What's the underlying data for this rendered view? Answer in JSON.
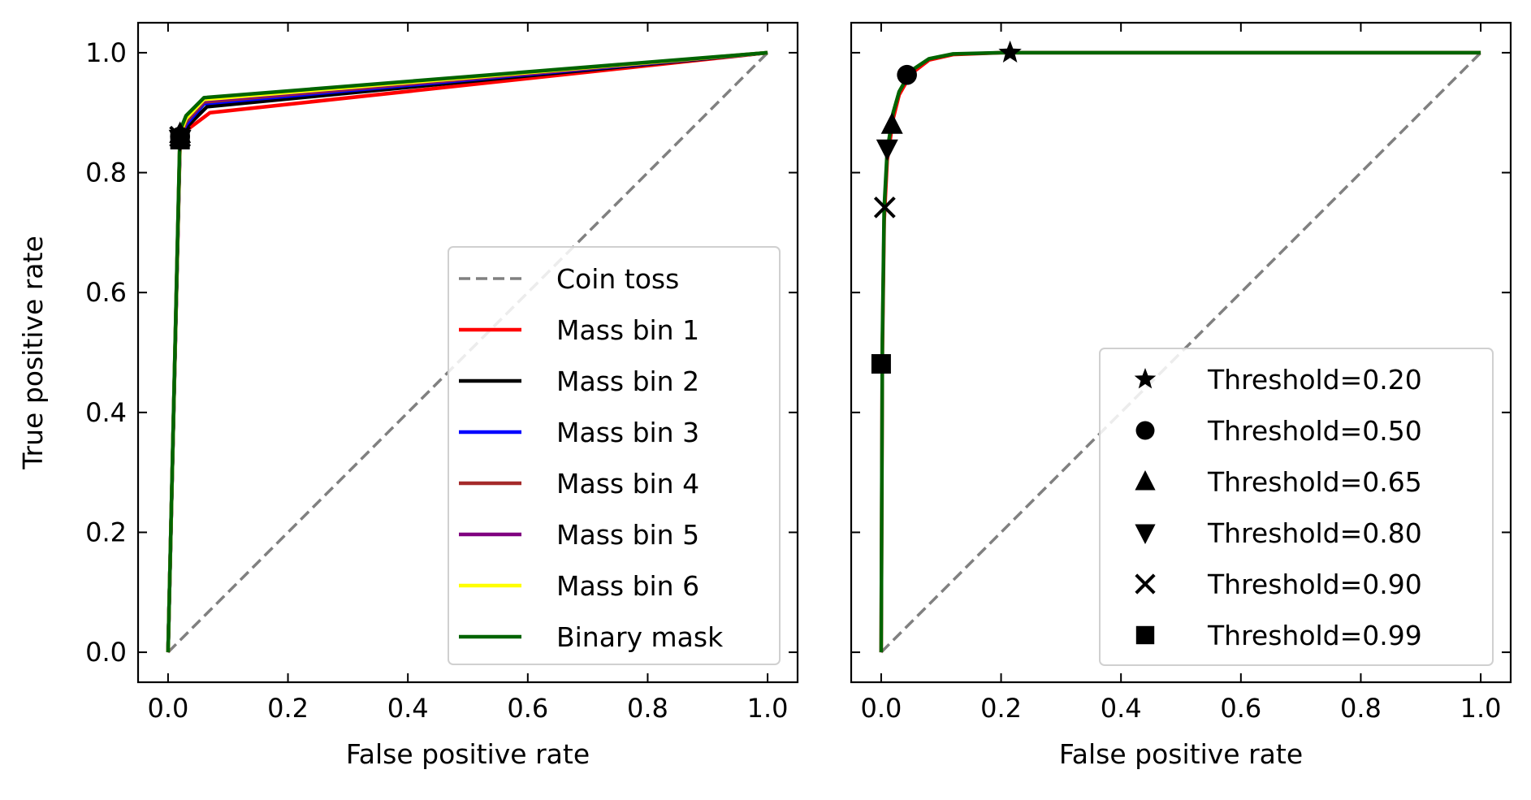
{
  "chart_data": [
    {
      "type": "line",
      "title": "",
      "xlabel": "False positive rate",
      "ylabel": "True positive rate",
      "xlim": [
        -0.05,
        1.05
      ],
      "ylim": [
        -0.05,
        1.05
      ],
      "xticks": [
        "0.0",
        "0.2",
        "0.4",
        "0.6",
        "0.8",
        "1.0"
      ],
      "yticks": [
        "0.0",
        "0.2",
        "0.4",
        "0.6",
        "0.8",
        "1.0"
      ],
      "legend_position": "lower-right",
      "series": [
        {
          "name": "Coin toss",
          "color": "#808080",
          "style": "dashed",
          "x": [
            0,
            1
          ],
          "y": [
            0,
            1
          ]
        },
        {
          "name": "Mass bin 1",
          "color": "#ff0000",
          "style": "solid",
          "x": [
            0,
            0.02,
            0.03,
            0.07,
            1
          ],
          "y": [
            0,
            0.85,
            0.87,
            0.9,
            1
          ]
        },
        {
          "name": "Mass bin 2",
          "color": "#000000",
          "style": "solid",
          "x": [
            0,
            0.02,
            0.03,
            0.065,
            1
          ],
          "y": [
            0,
            0.855,
            0.875,
            0.91,
            1
          ]
        },
        {
          "name": "Mass bin 3",
          "color": "#0000ff",
          "style": "solid",
          "x": [
            0,
            0.02,
            0.03,
            0.06,
            1
          ],
          "y": [
            0,
            0.86,
            0.88,
            0.915,
            1
          ]
        },
        {
          "name": "Mass bin 4",
          "color": "#a52a2a",
          "style": "solid",
          "x": [
            0,
            0.02,
            0.03,
            0.06,
            1
          ],
          "y": [
            0,
            0.86,
            0.885,
            0.918,
            1
          ]
        },
        {
          "name": "Mass bin 5",
          "color": "#800080",
          "style": "solid",
          "x": [
            0,
            0.02,
            0.03,
            0.06,
            1
          ],
          "y": [
            0,
            0.865,
            0.888,
            0.92,
            1
          ]
        },
        {
          "name": "Mass bin 6",
          "color": "#ffff00",
          "style": "solid",
          "x": [
            0,
            0.02,
            0.03,
            0.06,
            1
          ],
          "y": [
            0,
            0.865,
            0.89,
            0.922,
            1
          ]
        },
        {
          "name": "Binary mask",
          "color": "#006400",
          "style": "solid",
          "x": [
            0,
            0.02,
            0.03,
            0.06,
            1
          ],
          "y": [
            0,
            0.87,
            0.895,
            0.925,
            1
          ]
        }
      ],
      "markers": [
        {
          "shape": "star",
          "x": 0.02,
          "y": 0.865
        },
        {
          "shape": "circle",
          "x": 0.02,
          "y": 0.86
        },
        {
          "shape": "triangle-up",
          "x": 0.02,
          "y": 0.865
        },
        {
          "shape": "triangle-down",
          "x": 0.02,
          "y": 0.855
        },
        {
          "shape": "x",
          "x": 0.02,
          "y": 0.86
        },
        {
          "shape": "square",
          "x": 0.02,
          "y": 0.855
        }
      ]
    },
    {
      "type": "line",
      "title": "",
      "xlabel": "False positive rate",
      "ylabel": "",
      "xlim": [
        -0.05,
        1.05
      ],
      "ylim": [
        -0.05,
        1.05
      ],
      "xticks": [
        "0.0",
        "0.2",
        "0.4",
        "0.6",
        "0.8",
        "1.0"
      ],
      "yticks": [],
      "legend_position": "lower-right",
      "series": [
        {
          "name": "Coin toss",
          "color": "#808080",
          "style": "dashed",
          "x": [
            0,
            1
          ],
          "y": [
            0,
            1
          ]
        },
        {
          "name": "Mass bin 1",
          "color": "#ff0000",
          "style": "solid",
          "x": [
            0,
            0.002,
            0.005,
            0.01,
            0.02,
            0.03,
            0.05,
            0.08,
            0.12,
            0.2,
            1
          ],
          "y": [
            0,
            0.5,
            0.72,
            0.82,
            0.89,
            0.93,
            0.965,
            0.988,
            0.997,
            1,
            1
          ]
        },
        {
          "name": "Binary mask",
          "color": "#006400",
          "style": "solid",
          "x": [
            0,
            0.002,
            0.005,
            0.01,
            0.02,
            0.03,
            0.05,
            0.08,
            0.12,
            0.2,
            1
          ],
          "y": [
            0,
            0.52,
            0.74,
            0.835,
            0.9,
            0.935,
            0.97,
            0.99,
            0.998,
            1,
            1
          ]
        }
      ],
      "markers": [
        {
          "shape": "star",
          "label": "Threshold=0.20",
          "x": 0.215,
          "y": 1.0
        },
        {
          "shape": "circle",
          "label": "Threshold=0.50",
          "x": 0.043,
          "y": 0.963
        },
        {
          "shape": "triangle-up",
          "label": "Threshold=0.65",
          "x": 0.018,
          "y": 0.88
        },
        {
          "shape": "triangle-down",
          "label": "Threshold=0.80",
          "x": 0.01,
          "y": 0.84
        },
        {
          "shape": "x",
          "label": "Threshold=0.90",
          "x": 0.006,
          "y": 0.742
        },
        {
          "shape": "square",
          "label": "Threshold=0.99",
          "x": 0.0,
          "y": 0.481
        }
      ]
    }
  ]
}
